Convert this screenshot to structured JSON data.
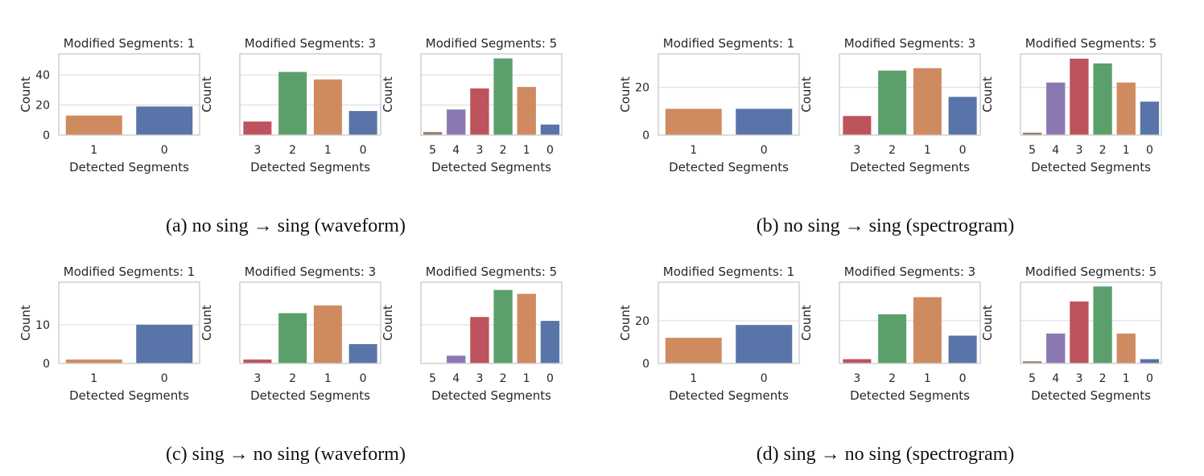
{
  "colors": {
    "0": "#5874a8",
    "1": "#cf8a60",
    "2": "#5ba06c",
    "3": "#bd535c",
    "4": "#8a78b2",
    "5": "#957b67",
    "grid": "#d9d9d9",
    "spine": "#cccccc",
    "text": "#262626"
  },
  "arrow": "→",
  "chart_data": [
    {
      "type": "bar",
      "caption": "(a) no sing → sing (waveform)",
      "ylabel": "Count",
      "xlabel": "Detected Segments",
      "ylim": [
        0,
        54
      ],
      "yticks": [
        0,
        20,
        40
      ],
      "subplots": [
        {
          "title": "Modified Segments: 1",
          "categories": [
            "1",
            "0"
          ],
          "values": [
            13,
            19
          ]
        },
        {
          "title": "Modified Segments: 3",
          "categories": [
            "3",
            "2",
            "1",
            "0"
          ],
          "values": [
            9,
            42,
            37,
            16
          ]
        },
        {
          "title": "Modified Segments: 5",
          "categories": [
            "5",
            "4",
            "3",
            "2",
            "1",
            "0"
          ],
          "values": [
            2,
            17,
            31,
            51,
            32,
            7
          ]
        }
      ]
    },
    {
      "type": "bar",
      "caption": "(b) no sing → sing (spectrogram)",
      "ylabel": "Count",
      "xlabel": "Detected Segments",
      "ylim": [
        0,
        34
      ],
      "yticks": [
        0,
        20
      ],
      "subplots": [
        {
          "title": "Modified Segments: 1",
          "categories": [
            "1",
            "0"
          ],
          "values": [
            11,
            11
          ]
        },
        {
          "title": "Modified Segments: 3",
          "categories": [
            "3",
            "2",
            "1",
            "0"
          ],
          "values": [
            8,
            27,
            28,
            16
          ]
        },
        {
          "title": "Modified Segments: 5",
          "categories": [
            "5",
            "4",
            "3",
            "2",
            "1",
            "0"
          ],
          "values": [
            1,
            22,
            32,
            30,
            22,
            14
          ]
        }
      ]
    },
    {
      "type": "bar",
      "caption": "(c) sing → no sing (waveform)",
      "ylabel": "Count",
      "xlabel": "Detected Segments",
      "ylim": [
        0,
        21
      ],
      "yticks": [
        0,
        10
      ],
      "subplots": [
        {
          "title": "Modified Segments: 1",
          "categories": [
            "1",
            "0"
          ],
          "values": [
            1,
            10
          ]
        },
        {
          "title": "Modified Segments: 3",
          "categories": [
            "3",
            "2",
            "1",
            "0"
          ],
          "values": [
            1,
            13,
            15,
            5
          ]
        },
        {
          "title": "Modified Segments: 5",
          "categories": [
            "5",
            "4",
            "3",
            "2",
            "1",
            "0"
          ],
          "values": [
            0,
            2,
            12,
            19,
            18,
            11
          ]
        }
      ]
    },
    {
      "type": "bar",
      "caption": "(d) sing → no sing (spectrogram)",
      "ylabel": "Count",
      "xlabel": "Detected Segments",
      "ylim": [
        0,
        38
      ],
      "yticks": [
        0,
        20
      ],
      "subplots": [
        {
          "title": "Modified Segments: 1",
          "categories": [
            "1",
            "0"
          ],
          "values": [
            12,
            18
          ]
        },
        {
          "title": "Modified Segments: 3",
          "categories": [
            "3",
            "2",
            "1",
            "0"
          ],
          "values": [
            2,
            23,
            31,
            13
          ]
        },
        {
          "title": "Modified Segments: 5",
          "categories": [
            "5",
            "4",
            "3",
            "2",
            "1",
            "0"
          ],
          "values": [
            1,
            14,
            29,
            36,
            14,
            2
          ]
        }
      ]
    }
  ]
}
